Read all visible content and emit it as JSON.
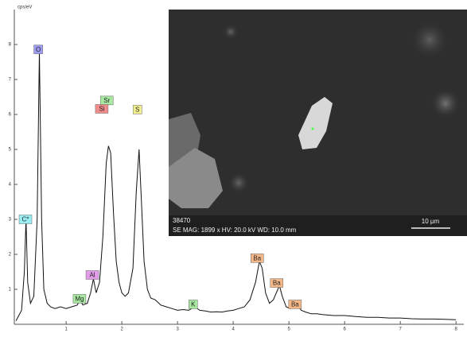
{
  "chart_data": {
    "type": "line",
    "y_label": "cps/eV",
    "x": [
      0.1,
      0.2,
      0.25,
      0.28,
      0.31,
      0.36,
      0.42,
      0.48,
      0.52,
      0.56,
      0.6,
      0.66,
      0.72,
      0.8,
      0.9,
      1.0,
      1.1,
      1.2,
      1.25,
      1.3,
      1.38,
      1.44,
      1.49,
      1.54,
      1.6,
      1.66,
      1.72,
      1.76,
      1.8,
      1.85,
      1.9,
      1.95,
      2.0,
      2.06,
      2.12,
      2.2,
      2.26,
      2.31,
      2.35,
      2.4,
      2.46,
      2.52,
      2.6,
      2.7,
      2.8,
      2.9,
      3.0,
      3.1,
      3.2,
      3.31,
      3.4,
      3.5,
      3.6,
      3.7,
      3.8,
      3.9,
      4.0,
      4.1,
      4.2,
      4.3,
      4.4,
      4.47,
      4.52,
      4.58,
      4.65,
      4.72,
      4.8,
      4.83,
      4.88,
      4.95,
      5.02,
      5.1,
      5.16,
      5.22,
      5.3,
      5.4,
      5.5,
      5.6,
      5.8,
      6.0,
      6.2,
      6.4,
      6.6,
      6.8,
      7.0,
      7.2,
      7.4,
      7.6,
      7.8,
      8.0
    ],
    "series": [
      {
        "color": "#111111",
        "values": [
          0.1,
          0.4,
          1.5,
          3.0,
          1.2,
          0.6,
          0.8,
          3.0,
          7.8,
          3.0,
          1.0,
          0.6,
          0.5,
          0.45,
          0.5,
          0.45,
          0.5,
          0.55,
          0.7,
          0.55,
          0.6,
          0.9,
          1.3,
          0.9,
          1.2,
          2.5,
          4.6,
          5.1,
          4.9,
          3.2,
          1.8,
          1.2,
          0.9,
          0.8,
          0.9,
          1.6,
          3.8,
          5.0,
          3.6,
          1.8,
          1.0,
          0.75,
          0.7,
          0.55,
          0.5,
          0.45,
          0.4,
          0.42,
          0.4,
          0.5,
          0.4,
          0.38,
          0.35,
          0.36,
          0.35,
          0.38,
          0.4,
          0.45,
          0.5,
          0.7,
          1.2,
          1.8,
          1.6,
          0.9,
          0.6,
          0.7,
          1.0,
          1.1,
          0.8,
          0.5,
          0.45,
          0.5,
          0.55,
          0.4,
          0.35,
          0.3,
          0.3,
          0.28,
          0.25,
          0.25,
          0.22,
          0.2,
          0.2,
          0.18,
          0.18,
          0.16,
          0.15,
          0.15,
          0.14,
          0.13
        ]
      }
    ],
    "xlim": [
      0.07,
      8.14
    ],
    "xticks": [
      1,
      2,
      3,
      4,
      5,
      6,
      7,
      8
    ],
    "ylim": [
      0,
      9
    ],
    "yticks": [
      1,
      2,
      3,
      4,
      5,
      6,
      7,
      8
    ],
    "annotations": [
      {
        "label": "C*",
        "x": 0.27,
        "y": 3.0,
        "color": "#9aeef2"
      },
      {
        "label": "O",
        "x": 0.5,
        "y": 7.86,
        "color": "#9c9cf2"
      },
      {
        "label": "Sr",
        "x": 1.73,
        "y": 6.4,
        "color": "#a8e8a0"
      },
      {
        "label": "Si",
        "x": 1.64,
        "y": 6.16,
        "color": "#f08c8c"
      },
      {
        "label": "S",
        "x": 2.28,
        "y": 6.14,
        "color": "#f2f090"
      },
      {
        "label": "Mg",
        "x": 1.24,
        "y": 0.73,
        "color": "#a8e8a0"
      },
      {
        "label": "Al",
        "x": 1.47,
        "y": 1.41,
        "color": "#e49cea"
      },
      {
        "label": "K",
        "x": 3.28,
        "y": 0.57,
        "color": "#a8e8a0"
      },
      {
        "label": "Ba",
        "x": 4.43,
        "y": 1.89,
        "color": "#f4b888"
      },
      {
        "label": "Ba",
        "x": 4.78,
        "y": 1.18,
        "color": "#f4b888"
      },
      {
        "label": "Ba",
        "x": 5.11,
        "y": 0.57,
        "color": "#f4b888"
      }
    ]
  },
  "image": {
    "id": "38470",
    "info": "SE  MAG: 1899 x  HV: 20.0 kV  WD: 10.0 mm",
    "scale": "10 µm"
  }
}
